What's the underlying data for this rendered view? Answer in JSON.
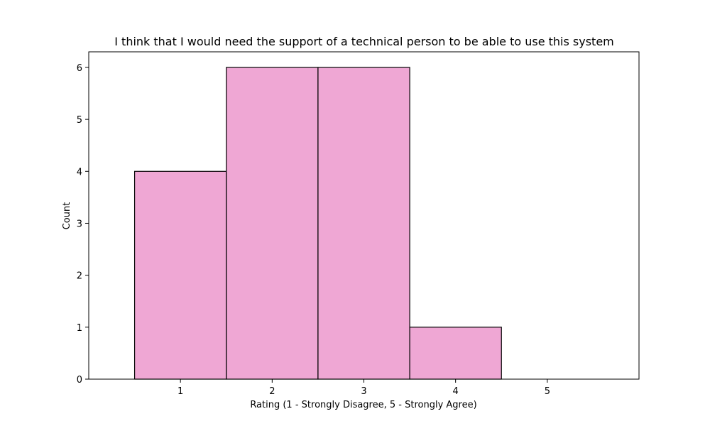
{
  "chart_data": {
    "type": "bar",
    "title": "I think that I would need the support of a technical person to be able to use this system",
    "xlabel": "Rating (1 - Strongly Disagree, 5 - Strongly Agree)",
    "ylabel": "Count",
    "categories": [
      "1",
      "2",
      "3",
      "4",
      "5"
    ],
    "values": [
      4,
      6,
      6,
      1,
      0
    ],
    "xlim": [
      -0.5,
      5.5
    ],
    "ylim": [
      0,
      6.3
    ],
    "yticks": [
      0,
      1,
      2,
      3,
      4,
      5,
      6
    ],
    "bar_color": "#EFA7D4",
    "edge_color": "#000000",
    "grid": false,
    "legend": "none"
  }
}
